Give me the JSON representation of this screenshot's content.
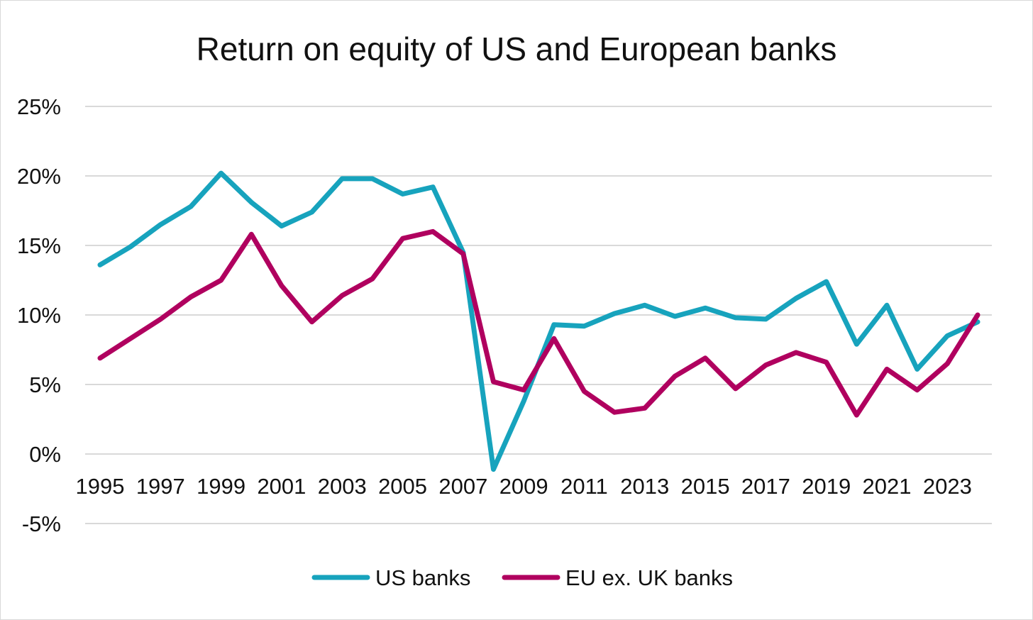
{
  "chart_data": {
    "type": "line",
    "title": "Return on equity of US and European banks",
    "xlabel": "",
    "ylabel": "",
    "x": [
      1995,
      1996,
      1997,
      1998,
      1999,
      2000,
      2001,
      2002,
      2003,
      2004,
      2005,
      2006,
      2007,
      2008,
      2009,
      2010,
      2011,
      2012,
      2013,
      2014,
      2015,
      2016,
      2017,
      2018,
      2019,
      2020,
      2021,
      2022,
      2023,
      2024
    ],
    "x_tick_labels": [
      "1995",
      "1997",
      "1999",
      "2001",
      "2003",
      "2005",
      "2007",
      "2009",
      "2011",
      "2013",
      "2015",
      "2017",
      "2019",
      "2021",
      "2023"
    ],
    "y_tick_labels": [
      "25%",
      "20%",
      "15%",
      "10%",
      "5%",
      "0%",
      "-5%"
    ],
    "y_ticks": [
      25,
      20,
      15,
      10,
      5,
      0,
      -5
    ],
    "ylim": [
      -5,
      25
    ],
    "grid": true,
    "legend_position": "bottom",
    "series": [
      {
        "name": "US banks",
        "color": "#17a3bd",
        "values": [
          13.6,
          14.9,
          16.5,
          17.8,
          20.2,
          18.1,
          16.4,
          17.4,
          19.8,
          19.8,
          18.7,
          19.2,
          14.5,
          -1.1,
          3.8,
          9.3,
          9.2,
          10.1,
          10.7,
          9.9,
          10.5,
          9.8,
          9.7,
          11.2,
          12.4,
          7.9,
          10.7,
          6.1,
          8.5,
          9.5
        ]
      },
      {
        "name": "EU ex. UK banks",
        "color": "#b0005f",
        "values": [
          6.9,
          8.3,
          9.7,
          11.3,
          12.5,
          15.8,
          12.1,
          9.5,
          11.4,
          12.6,
          15.5,
          16.0,
          14.4,
          5.2,
          4.6,
          8.3,
          4.5,
          3.0,
          3.3,
          5.6,
          6.9,
          4.7,
          6.4,
          7.3,
          6.6,
          2.8,
          6.1,
          4.6,
          6.5,
          10.0
        ]
      }
    ]
  }
}
